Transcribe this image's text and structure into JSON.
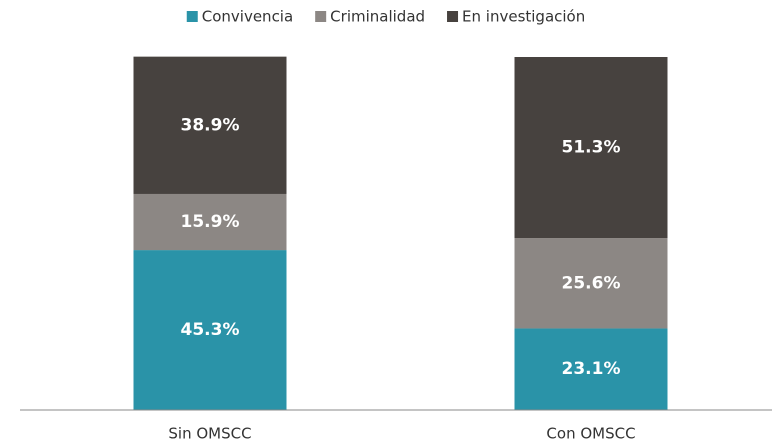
{
  "chart_data": {
    "type": "stacked_bar",
    "categories": [
      "Sin OMSCC",
      "Con OMSCC"
    ],
    "series": [
      {
        "name": "Convivencia",
        "color": "#2a93a8",
        "values": [
          45.3,
          23.1
        ],
        "value_labels": [
          "45.3%",
          "23.1%"
        ]
      },
      {
        "name": "Criminalidad",
        "color": "#8c8784",
        "values": [
          15.9,
          25.6
        ],
        "value_labels": [
          "15.9%",
          "25.6%"
        ]
      },
      {
        "name": "En investigación",
        "color": "#47423f",
        "values": [
          38.9,
          51.3
        ],
        "value_labels": [
          "38.9%",
          "51.3%"
        ]
      }
    ],
    "ylim": [
      0,
      100
    ],
    "legend": "top"
  }
}
